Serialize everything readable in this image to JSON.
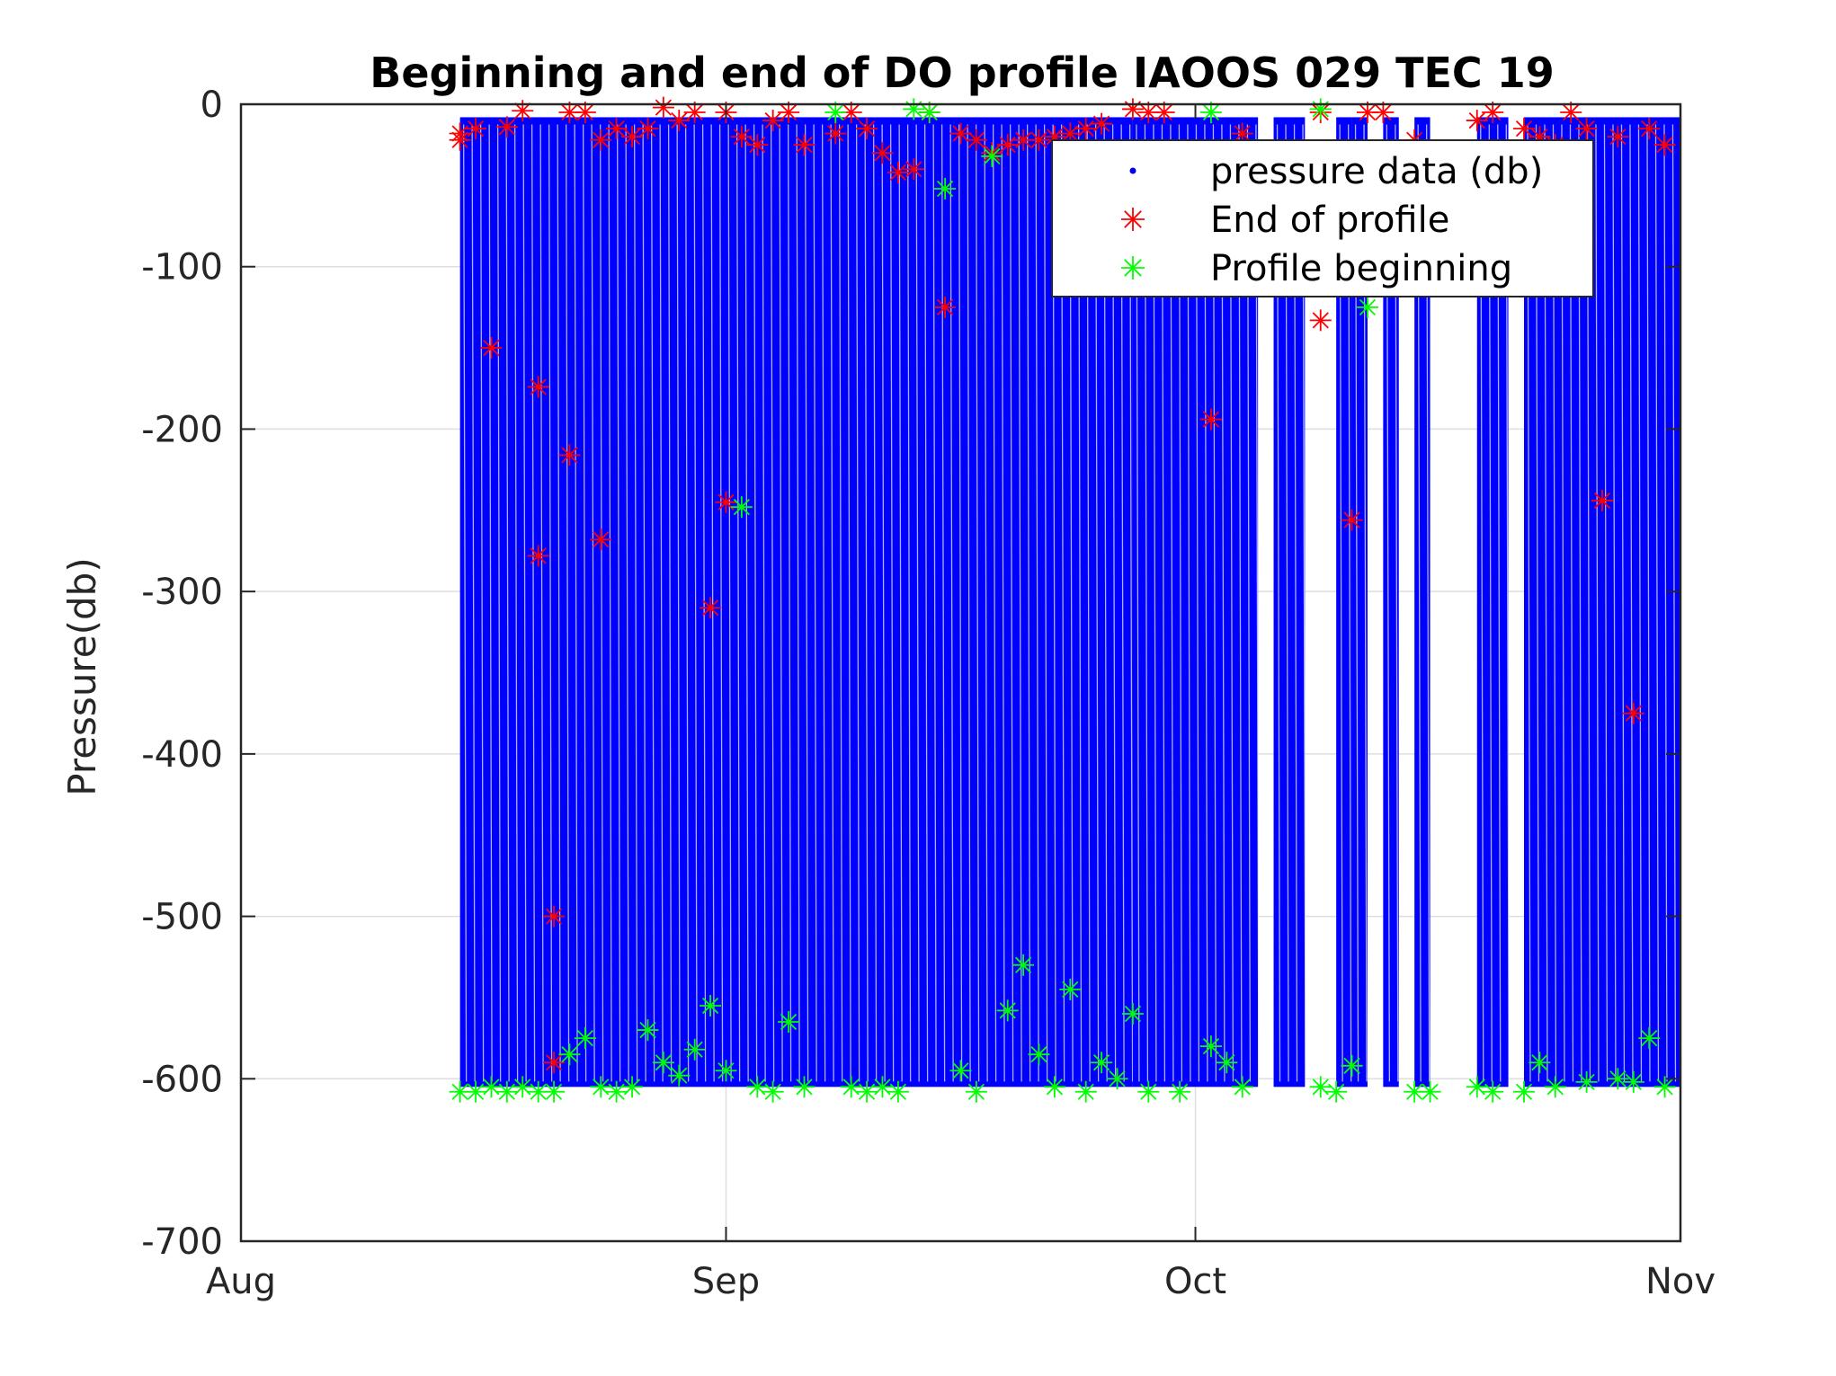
{
  "chart_data": {
    "type": "line",
    "title": "Beginning and end of DO profile IAOOS 029 TEC 19",
    "xlabel": "",
    "ylabel": "Pressure(db)",
    "x_axis": {
      "type": "date",
      "range": [
        "2019-08-01",
        "2019-11-01"
      ],
      "tick_dates": [
        "2019-08-01",
        "2019-09-01",
        "2019-10-01",
        "2019-11-01"
      ],
      "tick_labels": [
        "Aug",
        "Sep",
        "Oct",
        "Nov"
      ]
    },
    "y_axis": {
      "range": [
        -700,
        0
      ],
      "ticks": [
        0,
        -100,
        -200,
        -300,
        -400,
        -500,
        -600,
        -700
      ],
      "tick_labels": [
        "0",
        "-100",
        "-200",
        "-300",
        "-400",
        "-500",
        "-600",
        "-700"
      ]
    },
    "grid": true,
    "legend": {
      "placement": "top-right",
      "entries": [
        {
          "label": "pressure data (db)",
          "marker": "dot",
          "color": "#0000ff"
        },
        {
          "label": "End of profile",
          "marker": "asterisk",
          "color": "#ff0000"
        },
        {
          "label": "Profile beginning",
          "marker": "asterisk",
          "color": "#00ff00"
        }
      ]
    },
    "series": [
      {
        "name": "pressure data (db)",
        "style": "dense dot trace (profile excursions between surface and ~-605 db)",
        "color": "#0000ff",
        "coverage_ranges": [
          [
            "2019-08-15",
            "2019-09-27"
          ],
          [
            "2019-09-27",
            "2019-10-05"
          ],
          [
            "2019-10-06",
            "2019-10-08"
          ],
          [
            "2019-10-10",
            "2019-10-11"
          ],
          [
            "2019-10-11",
            "2019-10-12"
          ],
          [
            "2019-10-13",
            "2019-10-14"
          ],
          [
            "2019-10-15",
            "2019-10-16"
          ],
          [
            "2019-10-19",
            "2019-10-21"
          ],
          [
            "2019-10-22",
            "2019-11-01"
          ]
        ]
      },
      {
        "name": "End of profile",
        "color": "#ff0000",
        "points": [
          {
            "x": "2019-08-15",
            "y": -22
          },
          {
            "x": "2019-08-15",
            "y": -18
          },
          {
            "x": "2019-08-16",
            "y": -15
          },
          {
            "x": "2019-08-17",
            "y": -150
          },
          {
            "x": "2019-08-18",
            "y": -14
          },
          {
            "x": "2019-08-19",
            "y": -4
          },
          {
            "x": "2019-08-20",
            "y": -278
          },
          {
            "x": "2019-08-20",
            "y": -174
          },
          {
            "x": "2019-08-21",
            "y": -500
          },
          {
            "x": "2019-08-21",
            "y": -590
          },
          {
            "x": "2019-08-22",
            "y": -5
          },
          {
            "x": "2019-08-22",
            "y": -216
          },
          {
            "x": "2019-08-23",
            "y": -5
          },
          {
            "x": "2019-08-24",
            "y": -268
          },
          {
            "x": "2019-08-24",
            "y": -22
          },
          {
            "x": "2019-08-25",
            "y": -15
          },
          {
            "x": "2019-08-26",
            "y": -20
          },
          {
            "x": "2019-08-27",
            "y": -15
          },
          {
            "x": "2019-08-28",
            "y": -2
          },
          {
            "x": "2019-08-29",
            "y": -10
          },
          {
            "x": "2019-08-30",
            "y": -5
          },
          {
            "x": "2019-08-31",
            "y": -310
          },
          {
            "x": "2019-09-01",
            "y": -5
          },
          {
            "x": "2019-09-01",
            "y": -245
          },
          {
            "x": "2019-09-02",
            "y": -20
          },
          {
            "x": "2019-09-03",
            "y": -25
          },
          {
            "x": "2019-09-04",
            "y": -10
          },
          {
            "x": "2019-09-05",
            "y": -5
          },
          {
            "x": "2019-09-06",
            "y": -25
          },
          {
            "x": "2019-09-08",
            "y": -18
          },
          {
            "x": "2019-09-09",
            "y": -5
          },
          {
            "x": "2019-09-10",
            "y": -15
          },
          {
            "x": "2019-09-11",
            "y": -30
          },
          {
            "x": "2019-09-12",
            "y": -42
          },
          {
            "x": "2019-09-13",
            "y": -40
          },
          {
            "x": "2019-09-14",
            "y": -5
          },
          {
            "x": "2019-09-15",
            "y": -125
          },
          {
            "x": "2019-09-16",
            "y": -18
          },
          {
            "x": "2019-09-17",
            "y": -22
          },
          {
            "x": "2019-09-18",
            "y": -30
          },
          {
            "x": "2019-09-19",
            "y": -25
          },
          {
            "x": "2019-09-20",
            "y": -22
          },
          {
            "x": "2019-09-21",
            "y": -22
          },
          {
            "x": "2019-09-22",
            "y": -20
          },
          {
            "x": "2019-09-23",
            "y": -18
          },
          {
            "x": "2019-09-24",
            "y": -15
          },
          {
            "x": "2019-09-25",
            "y": -12
          },
          {
            "x": "2019-09-27",
            "y": -3
          },
          {
            "x": "2019-09-28",
            "y": -5
          },
          {
            "x": "2019-09-29",
            "y": -5
          },
          {
            "x": "2019-10-02",
            "y": -194
          },
          {
            "x": "2019-10-04",
            "y": -18
          },
          {
            "x": "2019-10-09",
            "y": -5
          },
          {
            "x": "2019-10-09",
            "y": -133
          },
          {
            "x": "2019-10-11",
            "y": -256
          },
          {
            "x": "2019-10-12",
            "y": -5
          },
          {
            "x": "2019-10-13",
            "y": -5
          },
          {
            "x": "2019-10-15",
            "y": -22
          },
          {
            "x": "2019-10-19",
            "y": -10
          },
          {
            "x": "2019-10-20",
            "y": -5
          },
          {
            "x": "2019-10-22",
            "y": -15
          },
          {
            "x": "2019-10-23",
            "y": -20
          },
          {
            "x": "2019-10-24",
            "y": -25
          },
          {
            "x": "2019-10-25",
            "y": -5
          },
          {
            "x": "2019-10-26",
            "y": -15
          },
          {
            "x": "2019-10-27",
            "y": -244
          },
          {
            "x": "2019-10-28",
            "y": -20
          },
          {
            "x": "2019-10-29",
            "y": -375
          },
          {
            "x": "2019-10-30",
            "y": -15
          },
          {
            "x": "2019-10-31",
            "y": -25
          }
        ]
      },
      {
        "name": "Profile beginning",
        "color": "#00ff00",
        "points": [
          {
            "x": "2019-08-15",
            "y": -608
          },
          {
            "x": "2019-08-16",
            "y": -608
          },
          {
            "x": "2019-08-17",
            "y": -605
          },
          {
            "x": "2019-08-18",
            "y": -608
          },
          {
            "x": "2019-08-19",
            "y": -605
          },
          {
            "x": "2019-08-20",
            "y": -608
          },
          {
            "x": "2019-08-21",
            "y": -608
          },
          {
            "x": "2019-08-22",
            "y": -585
          },
          {
            "x": "2019-08-23",
            "y": -575
          },
          {
            "x": "2019-08-24",
            "y": -605
          },
          {
            "x": "2019-08-25",
            "y": -608
          },
          {
            "x": "2019-08-26",
            "y": -605
          },
          {
            "x": "2019-08-27",
            "y": -570
          },
          {
            "x": "2019-08-28",
            "y": -590
          },
          {
            "x": "2019-08-29",
            "y": -598
          },
          {
            "x": "2019-08-30",
            "y": -582
          },
          {
            "x": "2019-08-31",
            "y": -555
          },
          {
            "x": "2019-09-01",
            "y": -595
          },
          {
            "x": "2019-09-02",
            "y": -248
          },
          {
            "x": "2019-09-03",
            "y": -605
          },
          {
            "x": "2019-09-04",
            "y": -608
          },
          {
            "x": "2019-09-05",
            "y": -565
          },
          {
            "x": "2019-09-06",
            "y": -605
          },
          {
            "x": "2019-09-08",
            "y": -5
          },
          {
            "x": "2019-09-09",
            "y": -605
          },
          {
            "x": "2019-09-10",
            "y": -608
          },
          {
            "x": "2019-09-11",
            "y": -605
          },
          {
            "x": "2019-09-12",
            "y": -608
          },
          {
            "x": "2019-09-13",
            "y": -3
          },
          {
            "x": "2019-09-14",
            "y": -5
          },
          {
            "x": "2019-09-15",
            "y": -52
          },
          {
            "x": "2019-09-16",
            "y": -595
          },
          {
            "x": "2019-09-17",
            "y": -608
          },
          {
            "x": "2019-09-18",
            "y": -32
          },
          {
            "x": "2019-09-19",
            "y": -558
          },
          {
            "x": "2019-09-20",
            "y": -530
          },
          {
            "x": "2019-09-21",
            "y": -585
          },
          {
            "x": "2019-09-22",
            "y": -605
          },
          {
            "x": "2019-09-23",
            "y": -545
          },
          {
            "x": "2019-09-24",
            "y": -608
          },
          {
            "x": "2019-09-25",
            "y": -590
          },
          {
            "x": "2019-09-26",
            "y": -600
          },
          {
            "x": "2019-09-27",
            "y": -560
          },
          {
            "x": "2019-09-28",
            "y": -608
          },
          {
            "x": "2019-09-30",
            "y": -608
          },
          {
            "x": "2019-10-02",
            "y": -5
          },
          {
            "x": "2019-10-02",
            "y": -580
          },
          {
            "x": "2019-10-03",
            "y": -590
          },
          {
            "x": "2019-10-04",
            "y": -605
          },
          {
            "x": "2019-10-09",
            "y": -605
          },
          {
            "x": "2019-10-09",
            "y": -3
          },
          {
            "x": "2019-10-10",
            "y": -608
          },
          {
            "x": "2019-10-11",
            "y": -592
          },
          {
            "x": "2019-10-12",
            "y": -125
          },
          {
            "x": "2019-10-15",
            "y": -608
          },
          {
            "x": "2019-10-16",
            "y": -608
          },
          {
            "x": "2019-10-19",
            "y": -605
          },
          {
            "x": "2019-10-20",
            "y": -608
          },
          {
            "x": "2019-10-22",
            "y": -608
          },
          {
            "x": "2019-10-23",
            "y": -590
          },
          {
            "x": "2019-10-24",
            "y": -605
          },
          {
            "x": "2019-10-26",
            "y": -602
          },
          {
            "x": "2019-10-28",
            "y": -600
          },
          {
            "x": "2019-10-29",
            "y": -602
          },
          {
            "x": "2019-10-30",
            "y": -575
          },
          {
            "x": "2019-10-31",
            "y": -605
          }
        ]
      }
    ]
  }
}
